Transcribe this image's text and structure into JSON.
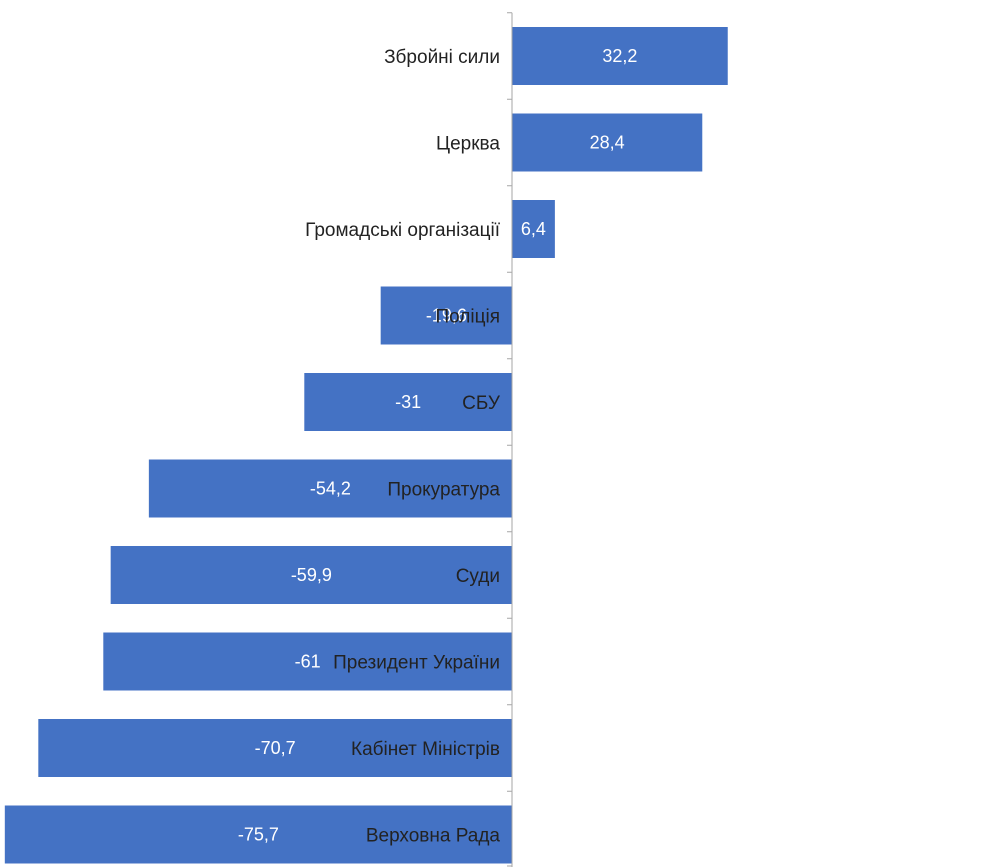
{
  "chart_data": {
    "type": "bar",
    "orientation": "horizontal",
    "categories": [
      "Збройні сили",
      "Церква",
      "Громадські організації",
      "Поліція",
      "СБУ",
      "Прокуратура",
      "Суди",
      "Президент України",
      "Кабінет Міністрів",
      "Верховна Рада"
    ],
    "values": [
      32.2,
      28.4,
      6.4,
      -19.6,
      -31,
      -54.2,
      -59.9,
      -61,
      -70.7,
      -75.7
    ],
    "value_labels": [
      "32,2",
      "28,4",
      "6,4",
      "-19,6",
      "-31",
      "-54,2",
      "-59,9",
      "-61",
      "-70,7",
      "-75,7"
    ],
    "bar_color": "#4472C4",
    "axis_color": "#A6A6A6"
  }
}
